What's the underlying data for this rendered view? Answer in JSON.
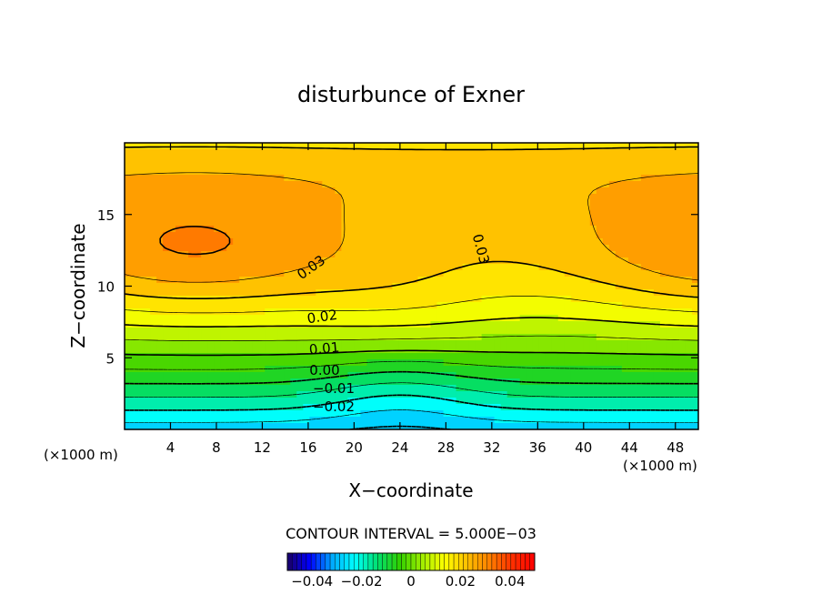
{
  "chart_data": {
    "type": "contour",
    "title": "disturbunce of Exner",
    "xlabel": "X−coordinate",
    "ylabel": "Z−coordinate",
    "x_unit": "(×1000 m)",
    "x_unit_right": "(×1000 m)",
    "x_ticks": [
      "4",
      "8",
      "12",
      "16",
      "20",
      "24",
      "28",
      "32",
      "36",
      "40",
      "44",
      "48"
    ],
    "x_tick_values": [
      4,
      8,
      12,
      16,
      20,
      24,
      28,
      32,
      36,
      40,
      44,
      48
    ],
    "y_ticks": [
      "5",
      "10",
      "15"
    ],
    "y_tick_values": [
      5,
      10,
      15
    ],
    "xlim": [
      0,
      50
    ],
    "ylim": [
      0,
      20
    ],
    "contour_interval_label": "CONTOUR INTERVAL = 5.000E−03",
    "contour_interval": 0.005,
    "contour_labels": [
      "0.03",
      "0.03",
      "0.02",
      "0.01",
      "0.00",
      "−0.01",
      "−0.02"
    ],
    "colorbar_ticks": [
      "−0.04",
      "−0.02",
      "0",
      "0.02",
      "0.04"
    ],
    "colorbar_tick_values": [
      -0.04,
      -0.02,
      0,
      0.02,
      0.04
    ],
    "colorbar_range": [
      -0.05,
      0.05
    ],
    "colormap": [
      "#1a0066",
      "#0000ff",
      "#00aaff",
      "#00ffff",
      "#00e070",
      "#30d000",
      "#a0ee00",
      "#ffff00",
      "#ffc000",
      "#ff8000",
      "#ff3000",
      "#ff0000"
    ]
  }
}
